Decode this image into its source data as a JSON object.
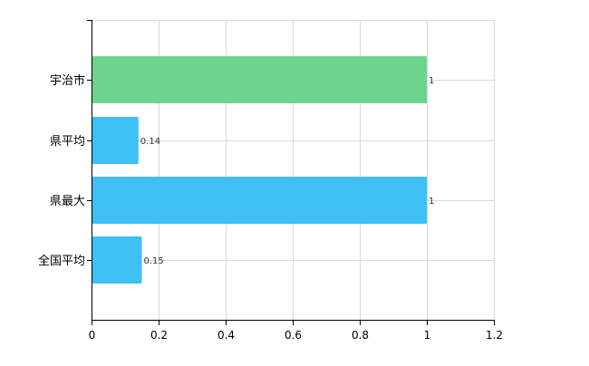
{
  "chart_data": {
    "type": "bar",
    "orientation": "horizontal",
    "categories": [
      "宇治市",
      "県平均",
      "県最大",
      "全国平均"
    ],
    "values": [
      1,
      0.14,
      1,
      0.15
    ],
    "data_labels": [
      "1",
      "0.14",
      "1",
      "0.15"
    ],
    "bar_colors": [
      "#6dd48d",
      "#3ec0f3",
      "#3ec0f3",
      "#3ec0f3"
    ],
    "xlim": [
      0,
      1.2
    ],
    "xticks": [
      0,
      0.2,
      0.4,
      0.6,
      0.8,
      1,
      1.2
    ],
    "xtick_labels": [
      "0",
      "0.2",
      "0.4",
      "0.6",
      "0.8",
      "1",
      "1.2"
    ],
    "grid": true,
    "title": "",
    "xlabel": "",
    "ylabel": ""
  }
}
